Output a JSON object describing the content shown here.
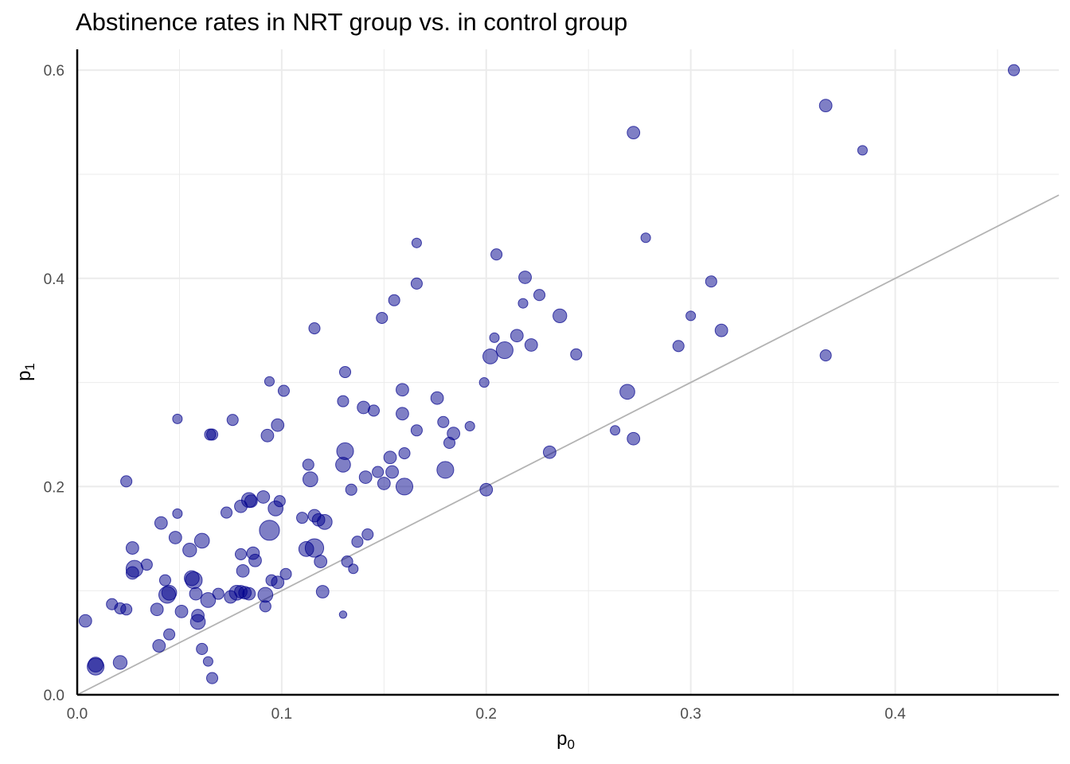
{
  "chart_data": {
    "type": "scatter",
    "title": "Abstinence rates in NRT group vs. in control group",
    "xlabel": {
      "main": "p",
      "sub": "0"
    },
    "ylabel": {
      "main": "p",
      "sub": "1"
    },
    "xlim": [
      0,
      0.48
    ],
    "ylim": [
      0,
      0.62
    ],
    "x_ticks": [
      {
        "value": 0.0,
        "label": "0.0"
      },
      {
        "value": 0.1,
        "label": "0.1"
      },
      {
        "value": 0.2,
        "label": "0.2"
      },
      {
        "value": 0.3,
        "label": "0.3"
      },
      {
        "value": 0.4,
        "label": "0.4"
      }
    ],
    "y_ticks": [
      {
        "value": 0.0,
        "label": "0.0"
      },
      {
        "value": 0.2,
        "label": "0.2"
      },
      {
        "value": 0.4,
        "label": "0.4"
      },
      {
        "value": 0.6,
        "label": "0.6"
      }
    ],
    "x_minor": [
      0.05,
      0.15,
      0.25,
      0.35,
      0.45
    ],
    "y_minor": [
      0.1,
      0.3,
      0.5
    ],
    "grid": true,
    "reference_line": {
      "label": "y = x",
      "slope": 1,
      "intercept": 0,
      "color": "#b3b3b3"
    },
    "point_color": "#00008b",
    "point_alpha": 0.5,
    "size_note": "point area proportional to study size (relative units)",
    "points": [
      {
        "x": 0.458,
        "y": 0.6,
        "s": 3
      },
      {
        "x": 0.366,
        "y": 0.566,
        "s": 4
      },
      {
        "x": 0.384,
        "y": 0.523,
        "s": 2
      },
      {
        "x": 0.272,
        "y": 0.54,
        "s": 4
      },
      {
        "x": 0.278,
        "y": 0.439,
        "s": 2
      },
      {
        "x": 0.31,
        "y": 0.397,
        "s": 3
      },
      {
        "x": 0.3,
        "y": 0.364,
        "s": 2
      },
      {
        "x": 0.315,
        "y": 0.35,
        "s": 4
      },
      {
        "x": 0.294,
        "y": 0.335,
        "s": 3
      },
      {
        "x": 0.366,
        "y": 0.326,
        "s": 3
      },
      {
        "x": 0.269,
        "y": 0.291,
        "s": 6
      },
      {
        "x": 0.263,
        "y": 0.254,
        "s": 2
      },
      {
        "x": 0.272,
        "y": 0.246,
        "s": 4
      },
      {
        "x": 0.231,
        "y": 0.233,
        "s": 4
      },
      {
        "x": 0.2,
        "y": 0.197,
        "s": 4
      },
      {
        "x": 0.166,
        "y": 0.434,
        "s": 2
      },
      {
        "x": 0.205,
        "y": 0.423,
        "s": 3
      },
      {
        "x": 0.219,
        "y": 0.401,
        "s": 4
      },
      {
        "x": 0.166,
        "y": 0.395,
        "s": 3
      },
      {
        "x": 0.155,
        "y": 0.379,
        "s": 3
      },
      {
        "x": 0.218,
        "y": 0.376,
        "s": 2
      },
      {
        "x": 0.226,
        "y": 0.384,
        "s": 3
      },
      {
        "x": 0.236,
        "y": 0.364,
        "s": 5
      },
      {
        "x": 0.149,
        "y": 0.362,
        "s": 3
      },
      {
        "x": 0.116,
        "y": 0.352,
        "s": 3
      },
      {
        "x": 0.215,
        "y": 0.345,
        "s": 4
      },
      {
        "x": 0.204,
        "y": 0.343,
        "s": 2
      },
      {
        "x": 0.222,
        "y": 0.336,
        "s": 4
      },
      {
        "x": 0.244,
        "y": 0.327,
        "s": 3
      },
      {
        "x": 0.202,
        "y": 0.325,
        "s": 6
      },
      {
        "x": 0.209,
        "y": 0.331,
        "s": 8
      },
      {
        "x": 0.131,
        "y": 0.31,
        "s": 3
      },
      {
        "x": 0.199,
        "y": 0.3,
        "s": 2
      },
      {
        "x": 0.094,
        "y": 0.301,
        "s": 2
      },
      {
        "x": 0.101,
        "y": 0.292,
        "s": 3
      },
      {
        "x": 0.159,
        "y": 0.293,
        "s": 4
      },
      {
        "x": 0.176,
        "y": 0.285,
        "s": 4
      },
      {
        "x": 0.13,
        "y": 0.282,
        "s": 3
      },
      {
        "x": 0.14,
        "y": 0.276,
        "s": 4
      },
      {
        "x": 0.145,
        "y": 0.273,
        "s": 3
      },
      {
        "x": 0.159,
        "y": 0.27,
        "s": 4
      },
      {
        "x": 0.049,
        "y": 0.265,
        "s": 2
      },
      {
        "x": 0.076,
        "y": 0.264,
        "s": 3
      },
      {
        "x": 0.179,
        "y": 0.262,
        "s": 3
      },
      {
        "x": 0.098,
        "y": 0.259,
        "s": 4
      },
      {
        "x": 0.192,
        "y": 0.258,
        "s": 2
      },
      {
        "x": 0.166,
        "y": 0.254,
        "s": 3
      },
      {
        "x": 0.065,
        "y": 0.25,
        "s": 3
      },
      {
        "x": 0.066,
        "y": 0.25,
        "s": 3
      },
      {
        "x": 0.184,
        "y": 0.251,
        "s": 4
      },
      {
        "x": 0.093,
        "y": 0.249,
        "s": 4
      },
      {
        "x": 0.182,
        "y": 0.242,
        "s": 3
      },
      {
        "x": 0.131,
        "y": 0.234,
        "s": 8
      },
      {
        "x": 0.153,
        "y": 0.228,
        "s": 4
      },
      {
        "x": 0.16,
        "y": 0.232,
        "s": 3
      },
      {
        "x": 0.113,
        "y": 0.221,
        "s": 3
      },
      {
        "x": 0.13,
        "y": 0.221,
        "s": 6
      },
      {
        "x": 0.18,
        "y": 0.216,
        "s": 8
      },
      {
        "x": 0.147,
        "y": 0.214,
        "s": 3
      },
      {
        "x": 0.154,
        "y": 0.214,
        "s": 4
      },
      {
        "x": 0.141,
        "y": 0.209,
        "s": 4
      },
      {
        "x": 0.114,
        "y": 0.207,
        "s": 6
      },
      {
        "x": 0.024,
        "y": 0.205,
        "s": 3
      },
      {
        "x": 0.15,
        "y": 0.203,
        "s": 4
      },
      {
        "x": 0.16,
        "y": 0.2,
        "s": 8
      },
      {
        "x": 0.134,
        "y": 0.197,
        "s": 3
      },
      {
        "x": 0.091,
        "y": 0.19,
        "s": 4
      },
      {
        "x": 0.084,
        "y": 0.187,
        "s": 6
      },
      {
        "x": 0.085,
        "y": 0.186,
        "s": 4
      },
      {
        "x": 0.099,
        "y": 0.186,
        "s": 3
      },
      {
        "x": 0.08,
        "y": 0.181,
        "s": 4
      },
      {
        "x": 0.097,
        "y": 0.179,
        "s": 6
      },
      {
        "x": 0.073,
        "y": 0.175,
        "s": 3
      },
      {
        "x": 0.049,
        "y": 0.174,
        "s": 2
      },
      {
        "x": 0.116,
        "y": 0.172,
        "s": 4
      },
      {
        "x": 0.11,
        "y": 0.17,
        "s": 3
      },
      {
        "x": 0.118,
        "y": 0.168,
        "s": 4
      },
      {
        "x": 0.121,
        "y": 0.166,
        "s": 6
      },
      {
        "x": 0.041,
        "y": 0.165,
        "s": 4
      },
      {
        "x": 0.094,
        "y": 0.158,
        "s": 12
      },
      {
        "x": 0.142,
        "y": 0.154,
        "s": 3
      },
      {
        "x": 0.048,
        "y": 0.151,
        "s": 4
      },
      {
        "x": 0.061,
        "y": 0.148,
        "s": 6
      },
      {
        "x": 0.137,
        "y": 0.147,
        "s": 3
      },
      {
        "x": 0.027,
        "y": 0.141,
        "s": 4
      },
      {
        "x": 0.055,
        "y": 0.139,
        "s": 5
      },
      {
        "x": 0.112,
        "y": 0.14,
        "s": 6
      },
      {
        "x": 0.116,
        "y": 0.141,
        "s": 10
      },
      {
        "x": 0.08,
        "y": 0.135,
        "s": 3
      },
      {
        "x": 0.086,
        "y": 0.136,
        "s": 4
      },
      {
        "x": 0.087,
        "y": 0.129,
        "s": 4
      },
      {
        "x": 0.119,
        "y": 0.128,
        "s": 4
      },
      {
        "x": 0.132,
        "y": 0.128,
        "s": 3
      },
      {
        "x": 0.135,
        "y": 0.121,
        "s": 2
      },
      {
        "x": 0.034,
        "y": 0.125,
        "s": 3
      },
      {
        "x": 0.028,
        "y": 0.121,
        "s": 8
      },
      {
        "x": 0.027,
        "y": 0.117,
        "s": 4
      },
      {
        "x": 0.081,
        "y": 0.119,
        "s": 4
      },
      {
        "x": 0.102,
        "y": 0.116,
        "s": 3
      },
      {
        "x": 0.056,
        "y": 0.112,
        "s": 6
      },
      {
        "x": 0.057,
        "y": 0.11,
        "s": 8
      },
      {
        "x": 0.043,
        "y": 0.11,
        "s": 3
      },
      {
        "x": 0.095,
        "y": 0.11,
        "s": 3
      },
      {
        "x": 0.098,
        "y": 0.108,
        "s": 4
      },
      {
        "x": 0.12,
        "y": 0.099,
        "s": 4
      },
      {
        "x": 0.045,
        "y": 0.098,
        "s": 6
      },
      {
        "x": 0.044,
        "y": 0.096,
        "s": 8
      },
      {
        "x": 0.058,
        "y": 0.097,
        "s": 4
      },
      {
        "x": 0.078,
        "y": 0.098,
        "s": 6
      },
      {
        "x": 0.08,
        "y": 0.099,
        "s": 4
      },
      {
        "x": 0.082,
        "y": 0.098,
        "s": 4
      },
      {
        "x": 0.084,
        "y": 0.097,
        "s": 4
      },
      {
        "x": 0.092,
        "y": 0.096,
        "s": 6
      },
      {
        "x": 0.069,
        "y": 0.097,
        "s": 3
      },
      {
        "x": 0.064,
        "y": 0.091,
        "s": 6
      },
      {
        "x": 0.075,
        "y": 0.094,
        "s": 4
      },
      {
        "x": 0.017,
        "y": 0.087,
        "s": 3
      },
      {
        "x": 0.092,
        "y": 0.085,
        "s": 3
      },
      {
        "x": 0.021,
        "y": 0.083,
        "s": 3
      },
      {
        "x": 0.024,
        "y": 0.082,
        "s": 3
      },
      {
        "x": 0.039,
        "y": 0.082,
        "s": 4
      },
      {
        "x": 0.051,
        "y": 0.08,
        "s": 4
      },
      {
        "x": 0.059,
        "y": 0.076,
        "s": 4
      },
      {
        "x": 0.13,
        "y": 0.077,
        "s": 1
      },
      {
        "x": 0.004,
        "y": 0.071,
        "s": 4
      },
      {
        "x": 0.059,
        "y": 0.07,
        "s": 6
      },
      {
        "x": 0.045,
        "y": 0.058,
        "s": 3
      },
      {
        "x": 0.04,
        "y": 0.047,
        "s": 4
      },
      {
        "x": 0.061,
        "y": 0.044,
        "s": 3
      },
      {
        "x": 0.064,
        "y": 0.032,
        "s": 2
      },
      {
        "x": 0.021,
        "y": 0.031,
        "s": 5
      },
      {
        "x": 0.009,
        "y": 0.029,
        "s": 6
      },
      {
        "x": 0.009,
        "y": 0.027,
        "s": 8
      },
      {
        "x": 0.066,
        "y": 0.016,
        "s": 3
      }
    ]
  }
}
